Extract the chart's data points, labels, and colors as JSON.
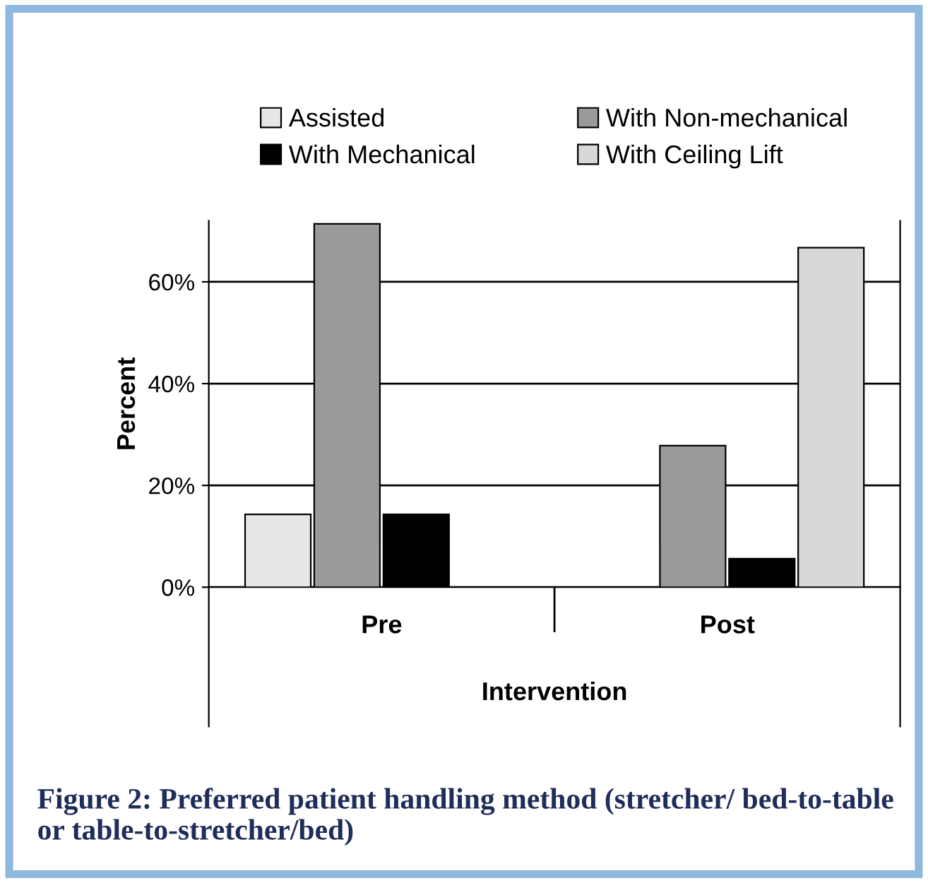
{
  "chart_data": {
    "type": "bar",
    "title": "Figure 2: Preferred patient handling method (stretcher/ bed-to-table or table-to-stretcher/bed)",
    "xlabel": "Intervention",
    "ylabel": "Percent",
    "categories": [
      "Pre",
      "Post"
    ],
    "series": [
      {
        "name": "Assisted",
        "color": "#e6e6e6",
        "values": [
          14.3,
          null
        ]
      },
      {
        "name": "With Non-mechanical",
        "color": "#9a9a9a",
        "values": [
          71.4,
          27.8
        ]
      },
      {
        "name": "With Mechanical",
        "color": "#000000",
        "values": [
          14.3,
          5.6
        ]
      },
      {
        "name": "With Ceiling Lift",
        "color": "#d8d8d8",
        "values": [
          null,
          66.7
        ]
      }
    ],
    "ylim": [
      0,
      72
    ],
    "yticks": [
      {
        "value": 0,
        "label": "0%"
      },
      {
        "value": 20,
        "label": "20%"
      },
      {
        "value": 40,
        "label": "40%"
      },
      {
        "value": 60,
        "label": "60%"
      }
    ],
    "grid": "y",
    "legend": "top"
  }
}
